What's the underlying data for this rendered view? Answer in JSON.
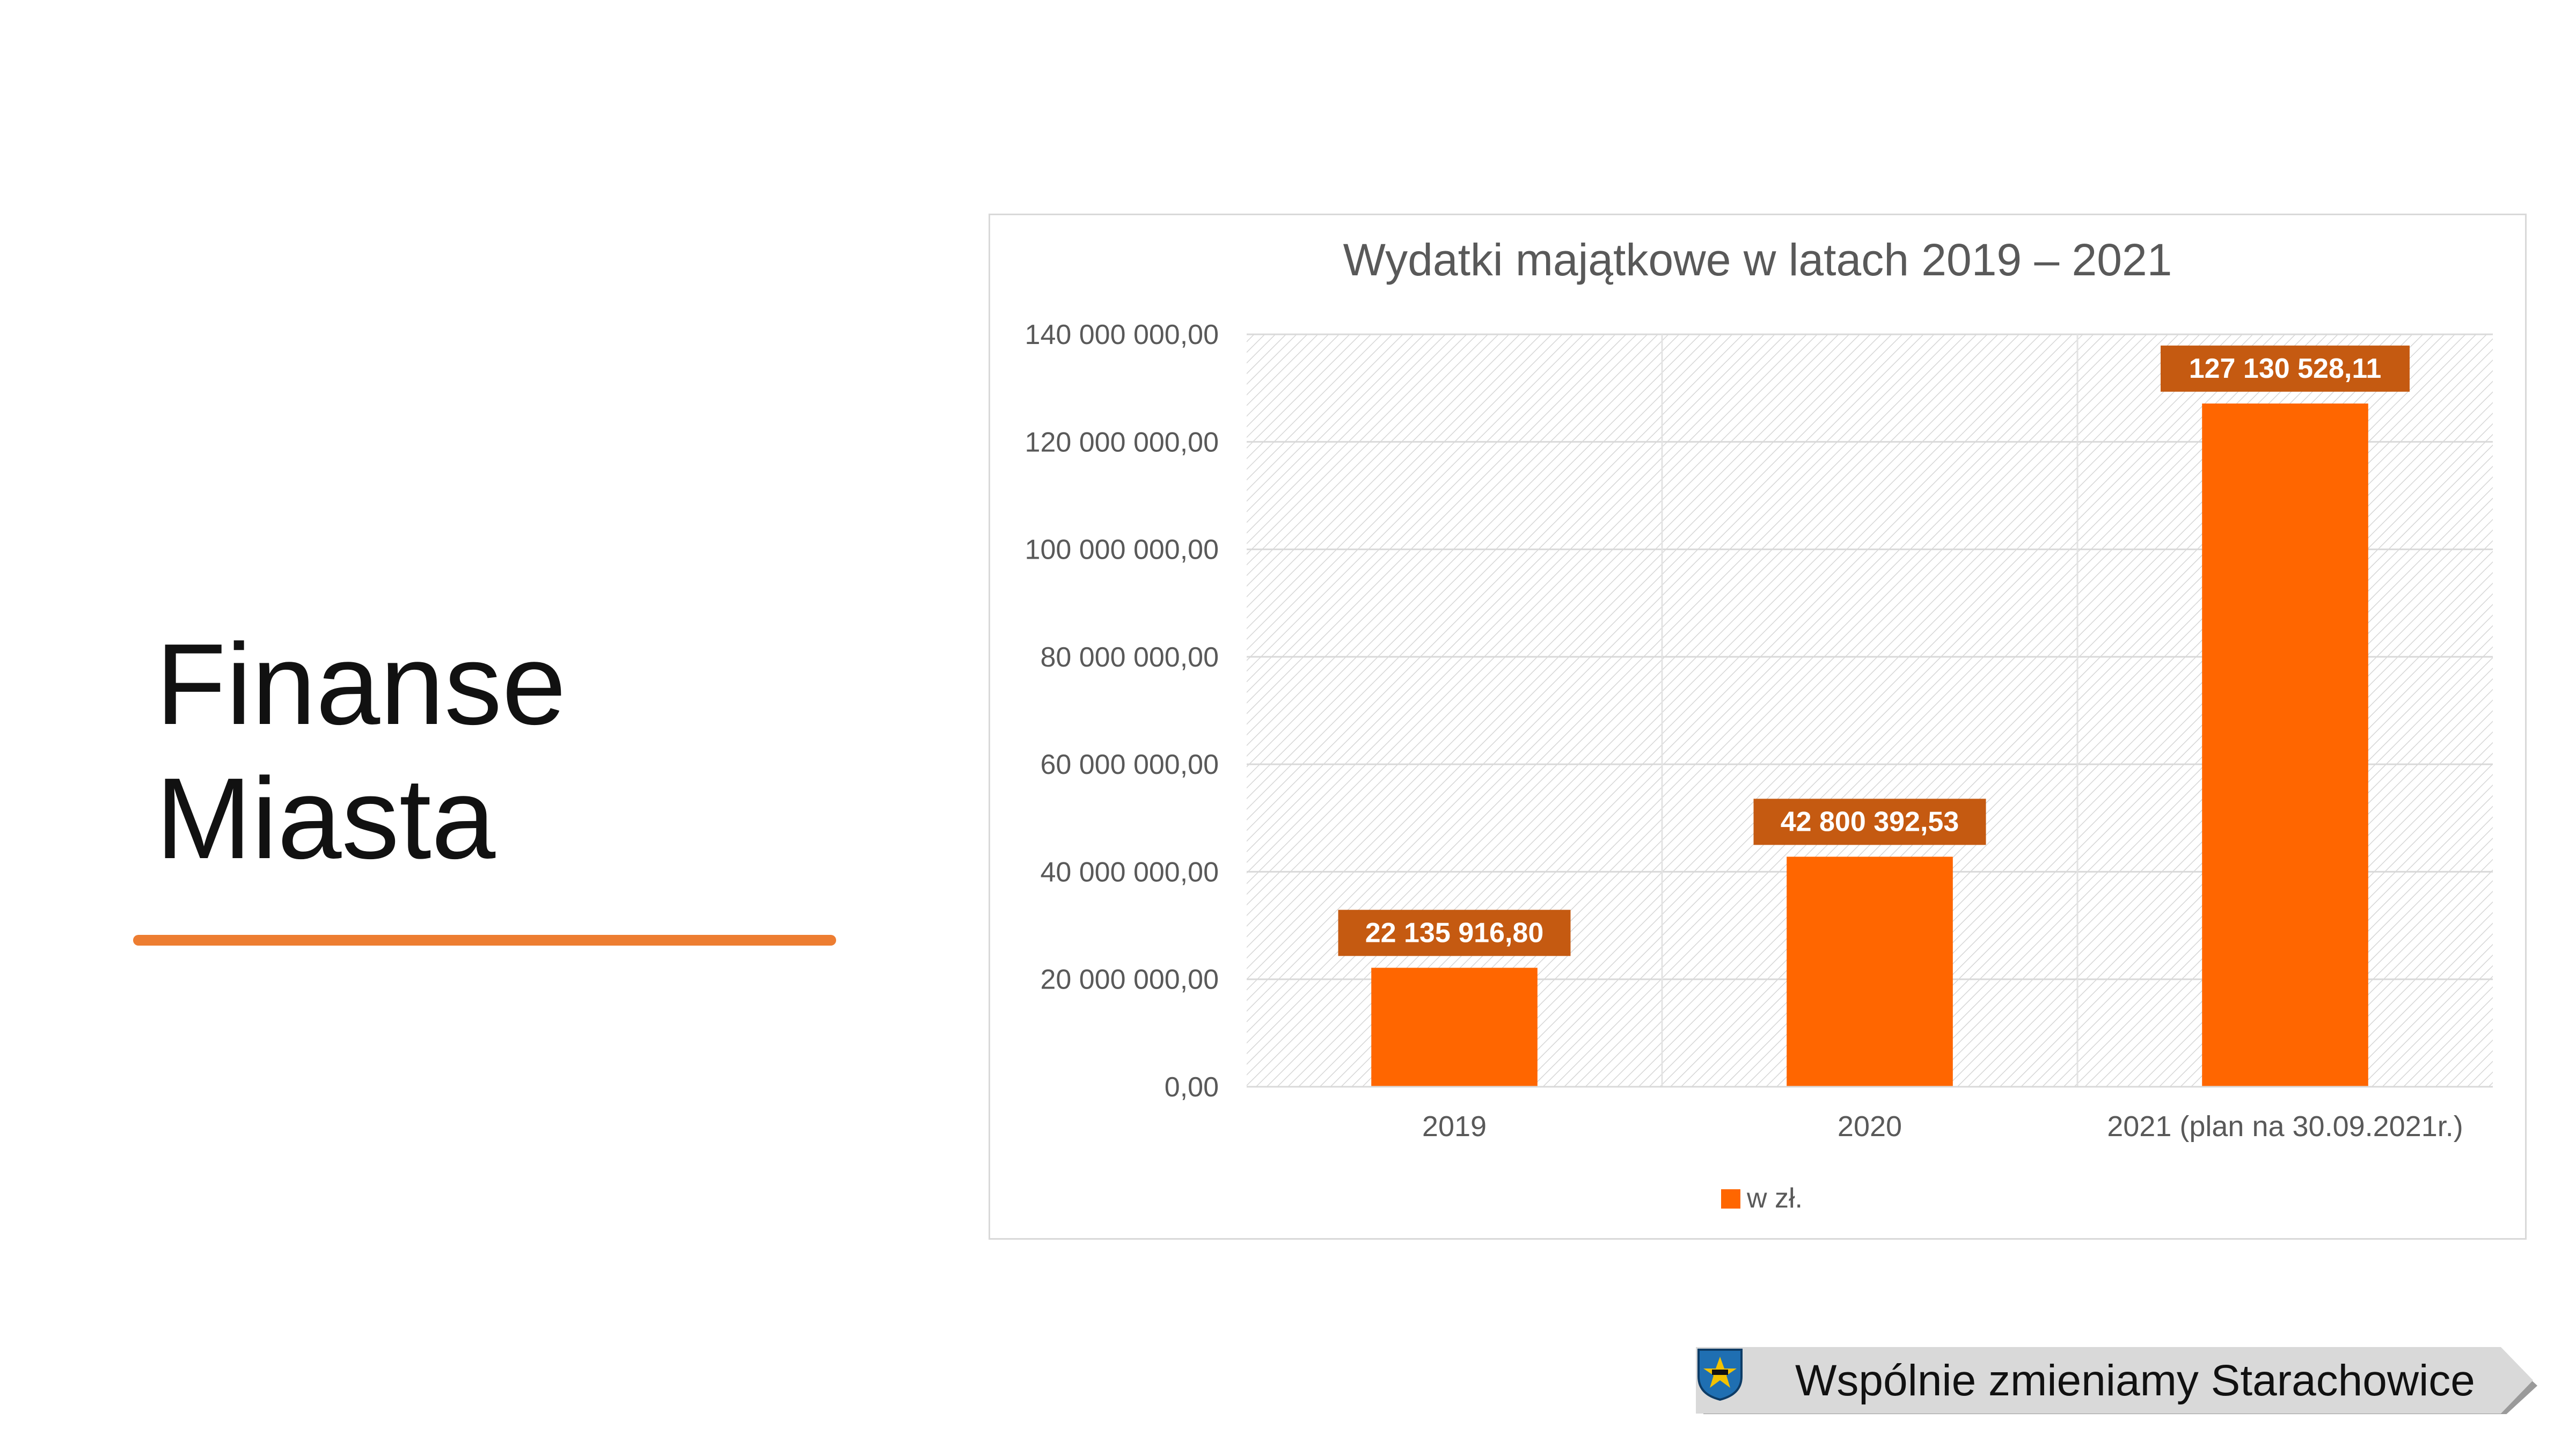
{
  "slide": {
    "title_line1": "Finanse",
    "title_line2": "Miasta",
    "accent_color": "#ed7d31"
  },
  "chart_data": {
    "type": "bar",
    "title": "Wydatki majątkowe w latach 2019 – 2021",
    "categories": [
      "2019",
      "2020",
      "2021 (plan na 30.09.2021r.)"
    ],
    "series": [
      {
        "name": "w zł.",
        "values": [
          22135916.8,
          42800392.53,
          127130528.11
        ],
        "labels": [
          "22 135 916,80",
          "42 800 392,53",
          "127 130 528,11"
        ],
        "color": "#ff6600"
      }
    ],
    "ylim": [
      0,
      140000000
    ],
    "yticks": [
      0,
      20000000,
      40000000,
      60000000,
      80000000,
      100000000,
      120000000,
      140000000
    ],
    "ytick_labels": [
      "0,00",
      "20 000 000,00",
      "40 000 000,00",
      "60 000 000,00",
      "80 000 000,00",
      "100 000 000,00",
      "120 000 000,00",
      "140 000 000,00"
    ],
    "grid": true,
    "legend": "bottom",
    "data_label_bg": "#c55a11"
  },
  "footer": {
    "text": "Wspólnie zmieniamy Starachowice",
    "icon": "city-crest-icon"
  }
}
